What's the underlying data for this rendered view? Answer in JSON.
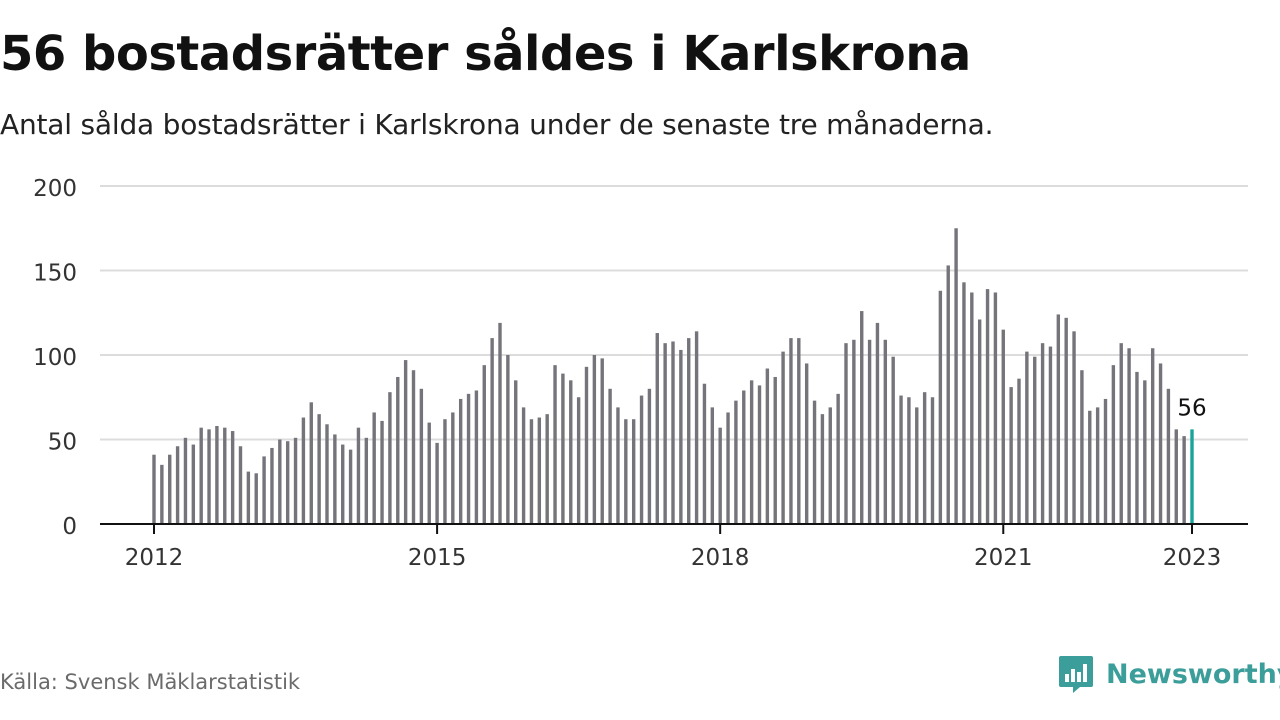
{
  "title": "56 bostadsrätter såldes i Karlskrona",
  "subtitle": "Antal sålda bostadsrätter i Karlskrona under de senaste tre månaderna.",
  "source": "Källa: Svensk Mäklarstatistik",
  "brand": {
    "name": "Newsworthy",
    "color": "#3c9e9a"
  },
  "colors": {
    "bar": "#74747a",
    "highlight": "#1aa39a",
    "grid": "#dcdcdc",
    "axis": "#111111"
  },
  "chart_data": {
    "type": "bar",
    "x_start": "2012-01",
    "x_end": "2023-01",
    "x_ticks": [
      "2012",
      "2015",
      "2018",
      "2021",
      "2023"
    ],
    "y_ticks": [
      "0",
      "50",
      "100",
      "150",
      "200"
    ],
    "ylim": [
      0,
      200
    ],
    "grid": true,
    "highlight_label": "56",
    "values": [
      41,
      35,
      41,
      46,
      51,
      47,
      57,
      56,
      58,
      57,
      55,
      46,
      31,
      30,
      40,
      45,
      50,
      49,
      51,
      63,
      72,
      65,
      59,
      53,
      47,
      44,
      57,
      51,
      66,
      61,
      78,
      87,
      97,
      91,
      80,
      60,
      48,
      62,
      66,
      74,
      77,
      79,
      94,
      110,
      119,
      100,
      85,
      69,
      62,
      63,
      65,
      94,
      89,
      85,
      75,
      93,
      100,
      98,
      80,
      69,
      62,
      62,
      76,
      80,
      113,
      107,
      108,
      103,
      110,
      114,
      83,
      69,
      57,
      66,
      73,
      79,
      85,
      82,
      92,
      87,
      102,
      110,
      110,
      95,
      73,
      65,
      69,
      77,
      107,
      109,
      126,
      109,
      119,
      109,
      99,
      76,
      75,
      69,
      78,
      75,
      138,
      153,
      175,
      143,
      137,
      121,
      139,
      137,
      115,
      81,
      86,
      102,
      99,
      107,
      105,
      124,
      122,
      114,
      91,
      67,
      69,
      74,
      94,
      107,
      104,
      90,
      85,
      104,
      95,
      80,
      56,
      52,
      56
    ]
  }
}
